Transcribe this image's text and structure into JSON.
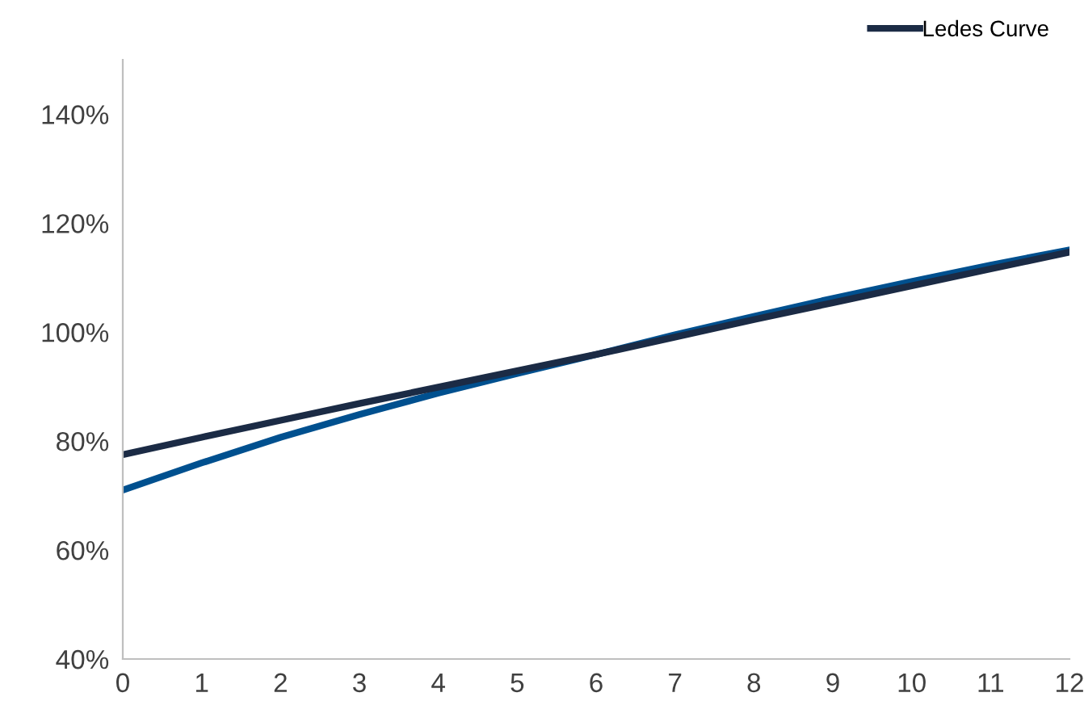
{
  "chart_data": {
    "type": "line",
    "x": [
      0,
      1,
      2,
      3,
      4,
      5,
      6,
      7,
      8,
      9,
      10,
      11,
      12
    ],
    "series": [
      {
        "color": "#00508f",
        "values": [
          71,
          76,
          80.7,
          84.9,
          88.8,
          92.4,
          95.9,
          99.5,
          102.9,
          106.2,
          109.3,
          112.3,
          115.1
        ]
      },
      {
        "name": "Ledes Curve",
        "color": "#1b2b45",
        "values": [
          77.5,
          80.7,
          83.8,
          86.9,
          89.9,
          92.9,
          95.9,
          99.1,
          102.3,
          105.4,
          108.5,
          111.6,
          114.7
        ]
      }
    ],
    "xlim": [
      0,
      12
    ],
    "xticks": [
      0,
      1,
      2,
      3,
      4,
      5,
      6,
      7,
      8,
      9,
      10,
      11,
      12
    ],
    "ylim": [
      40,
      150
    ],
    "yticks": [
      {
        "value": 40,
        "label": "40%"
      },
      {
        "value": 60,
        "label": "60%"
      },
      {
        "value": 80,
        "label": "80%"
      },
      {
        "value": 100,
        "label": "100%"
      },
      {
        "value": 120,
        "label": "120%"
      },
      {
        "value": 140,
        "label": "140%"
      }
    ],
    "grid": false,
    "legend": "top right",
    "marker": "none",
    "line_style": "solid"
  }
}
